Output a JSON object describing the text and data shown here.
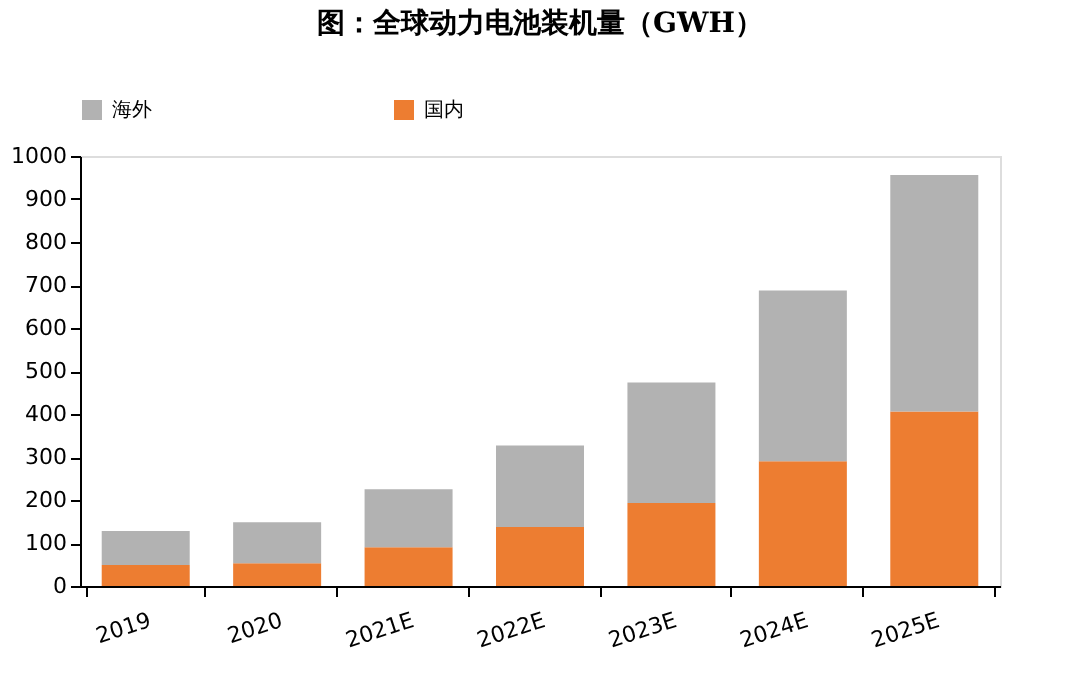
{
  "chart_data": {
    "type": "bar",
    "stacked": true,
    "title": "图：全球动力电池装机量（GWH）",
    "categories": [
      "2019",
      "2020",
      "2021E",
      "2022E",
      "2023E",
      "2024E",
      "2025E"
    ],
    "series": [
      {
        "name": "国内",
        "color": "#ed7d31",
        "values": [
          49,
          53,
          90,
          137,
          193,
          290,
          406
        ]
      },
      {
        "name": "海外",
        "color": "#b2b2b2",
        "values": [
          79,
          95,
          135,
          190,
          280,
          397,
          550
        ]
      }
    ],
    "ylim": [
      0,
      1000
    ],
    "yticks": [
      0,
      100,
      200,
      300,
      400,
      500,
      600,
      700,
      800,
      900,
      1000
    ],
    "grid": false,
    "legend": "top"
  }
}
